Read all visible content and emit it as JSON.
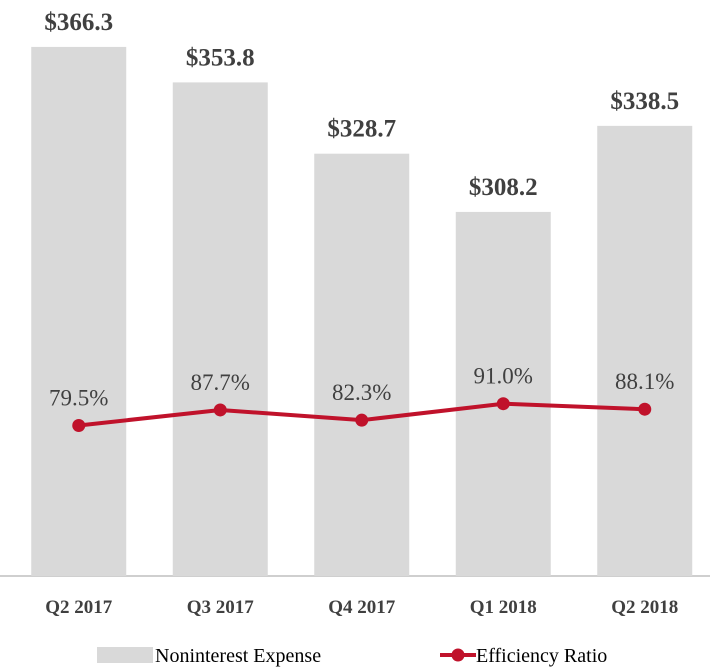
{
  "chart_data": {
    "type": "bar_line",
    "categories": [
      "Q2 2017",
      "Q3 2017",
      "Q4 2017",
      "Q1 2018",
      "Q2 2018"
    ],
    "series": [
      {
        "name": "Noninterest Expense",
        "type": "bar",
        "color": "#d9d9d9",
        "values": [
          366.3,
          353.8,
          328.7,
          308.2,
          338.5
        ],
        "value_labels": [
          "$366.3",
          "$353.8",
          "$328.7",
          "$308.2",
          "$338.5"
        ]
      },
      {
        "name": "Efficiency Ratio",
        "type": "line",
        "axis": "y2",
        "color": "#c0122b",
        "values": [
          79.5,
          87.7,
          82.3,
          91.0,
          88.1
        ],
        "value_labels": [
          "79.5%",
          "87.7%",
          "82.3%",
          "91.0%",
          "88.1%"
        ]
      }
    ],
    "ylim": [
      180,
      380
    ],
    "y2lim": [
      0,
      300
    ],
    "legend": "bottom"
  }
}
